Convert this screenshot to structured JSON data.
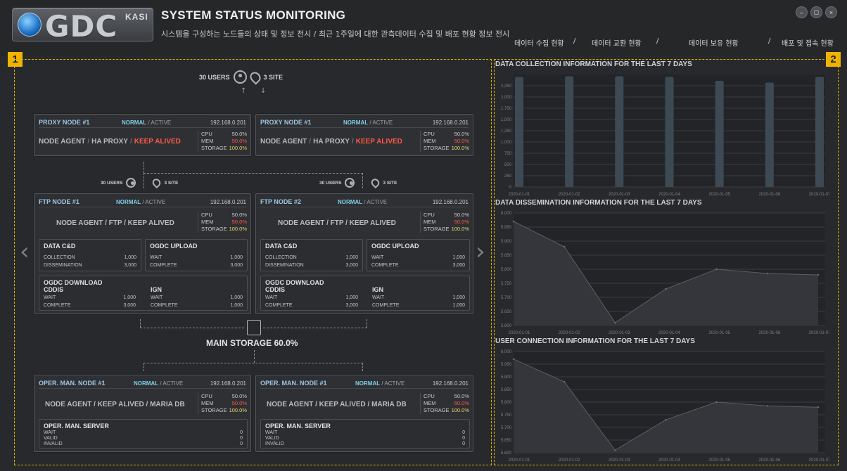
{
  "header": {
    "logo_text": "GDC",
    "logo_sub": "KASI",
    "title": "SYSTEM STATUS MONITORING",
    "subtitle": "시스템을 구성하는 노드들의 상태 및 정보 전시 / 최근 1주일에 대한 관측데이터 수집 및 배포 현황 정보 전시",
    "window_buttons": [
      "minimize-icon",
      "restore-icon",
      "close-icon"
    ]
  },
  "nav": {
    "items": [
      "데이터 수집 현황",
      "/",
      "데이터 교환 현황",
      "/",
      "데이터 보유 현황",
      "/",
      "배포 및 접속 현황"
    ]
  },
  "markers": {
    "left": "1",
    "right": "2"
  },
  "colors": {
    "accent": "#f0b400",
    "alert": "#ff5a47",
    "ok": "#7fd0e8",
    "bar": "#3d4a54"
  },
  "users": {
    "top_users": "30 USERS",
    "top_sites": "3 SITE",
    "ftp1_users": "30 USERS",
    "ftp1_sites": "3 SITE",
    "ftp2_users": "30 USERS",
    "ftp2_sites": "3 SITE"
  },
  "labels": {
    "normal": "NORMAL",
    "active": "ACTIVE",
    "sep": "/",
    "cpu": "CPU",
    "mem": "MEM",
    "storage": "STORAGE",
    "cpu_val": "50.0%",
    "mem_val": "50.0%",
    "storage_val": "100.0%",
    "ip": "192.168.0.201"
  },
  "proxy": [
    {
      "title": "PROXY NODE #1",
      "svc1": "NODE AGENT",
      "svc2": "HA PROXY",
      "svc3": "KEEP ALIVED"
    },
    {
      "title": "PROXY NODE #1",
      "svc1": "NODE AGENT",
      "svc2": "HA PROXY",
      "svc3": "KEEP ALIVED"
    }
  ],
  "ftp": [
    {
      "title": "FTP NODE #1",
      "services": "NODE AGENT / FTP / KEEP ALIVED"
    },
    {
      "title": "FTP NODE #2",
      "services": "NODE AGENT / FTP / KEEP ALIVED"
    }
  ],
  "ftp_sub": {
    "datacd": "DATA C&D",
    "collection": "COLLECTION",
    "collection_val": "1,000",
    "dissemination": "DISSEMINATION",
    "dissemination_val": "3,000",
    "ogdc_upload": "OGDC UPLOAD",
    "wait": "WAIT",
    "wait_val": "1,000",
    "complete": "COMPLETE",
    "complete_val": "3,000",
    "ogdc_download": "OGDC DOWNLOAD",
    "cddis": "CDDIS",
    "ign": "IGN",
    "cddis_wait_val": "1,000",
    "cddis_complete_val": "3,000",
    "ign_wait_val": "1,000",
    "ign_complete_val": "1,000"
  },
  "storage": {
    "label": "MAIN STORAGE 60.0%"
  },
  "oper": [
    {
      "title": "OPER. MAN. NODE #1",
      "services": "NODE AGENT / KEEP ALIVED / MARIA DB"
    },
    {
      "title": "OPER. MAN. NODE #1",
      "services": "NODE AGENT / KEEP ALIVED / MARIA DB"
    }
  ],
  "oper_sub": {
    "title": "OPER. MAN. SERVER",
    "wait": "WAIT",
    "valid": "VALID",
    "invalid": "INVALID",
    "wait_val": "0",
    "valid_val": "0",
    "invalid_val": "0"
  },
  "chart_data": [
    {
      "type": "bar",
      "title": "DATA COLLECTION INFORMATION FOR THE LAST 7 DAYS",
      "categories": [
        "2020-01-01",
        "2020-01-02",
        "2020-01-03",
        "2020-01-04",
        "2020-01-05",
        "2020-01-06",
        "2020-01-07"
      ],
      "values": [
        2450,
        2460,
        2460,
        2450,
        2360,
        2320,
        2450
      ],
      "ylim": [
        0,
        2500
      ],
      "yticks": [
        "0",
        "250",
        "500",
        "750",
        "1,000",
        "1,250",
        "1,500",
        "1,750",
        "2,000",
        "2,250"
      ],
      "grid": true
    },
    {
      "type": "area",
      "title": "DATA DISSEMINATION INFORMATION FOR THE LAST 7 DAYS",
      "categories": [
        "2020-01-01",
        "2020-01-02",
        "2020-01-03",
        "2020-01-04",
        "2020-01-05",
        "2020-01-06",
        "2020-01-07"
      ],
      "values": [
        5970,
        5880,
        5610,
        5730,
        5800,
        5785,
        5780
      ],
      "ylim": [
        5600,
        6000
      ],
      "yticks": [
        "5,600",
        "5,650",
        "5,700",
        "5,750",
        "5,800",
        "5,850",
        "5,900",
        "5,950",
        "6,000"
      ],
      "grid": true
    },
    {
      "type": "area",
      "title": "USER CONNECTION INFORMATION FOR THE LAST 7 DAYS",
      "categories": [
        "2020-01-01",
        "2020-01-02",
        "2020-01-03",
        "2020-01-04",
        "2020-01-05",
        "2020-01-06",
        "2020-01-07"
      ],
      "values": [
        5970,
        5880,
        5610,
        5730,
        5800,
        5785,
        5780
      ],
      "ylim": [
        5600,
        6000
      ],
      "yticks": [
        "5,600",
        "5,650",
        "5,700",
        "5,750",
        "5,800",
        "5,850",
        "5,900",
        "5,950",
        "6,000"
      ],
      "grid": true
    }
  ]
}
